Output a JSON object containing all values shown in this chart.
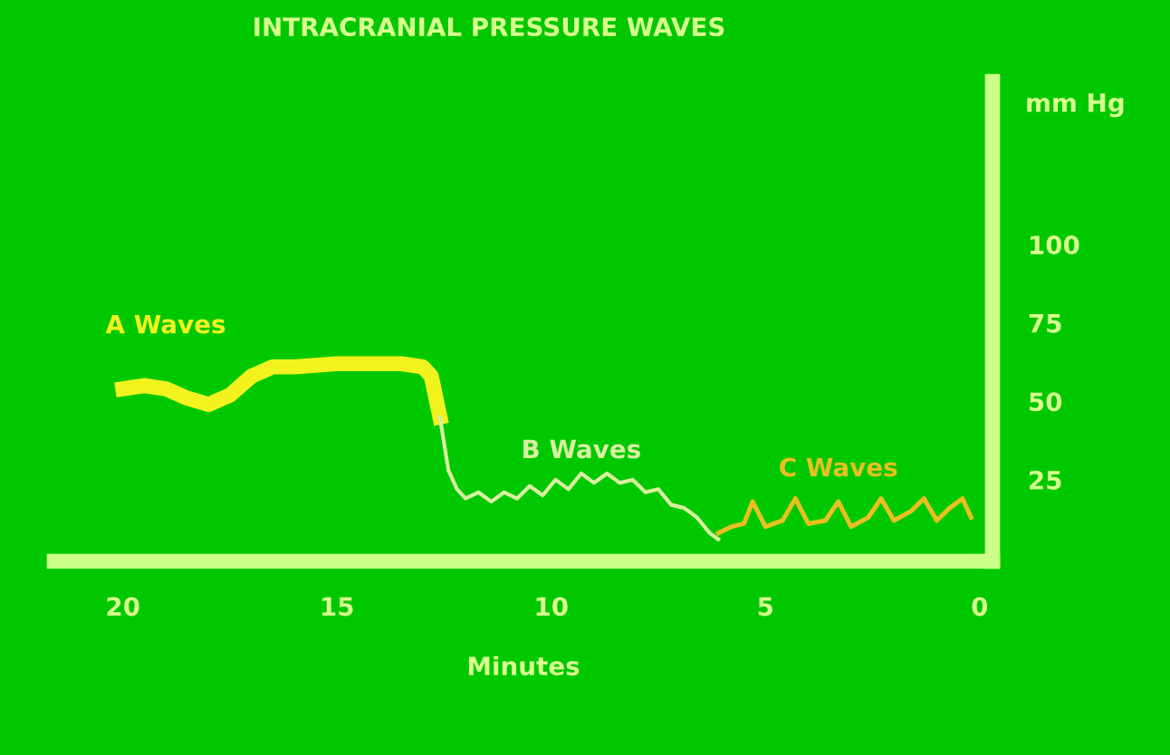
{
  "chart_data": {
    "type": "line",
    "title": "INTRACRANIAL PRESSURE WAVES",
    "xlabel": "Minutes",
    "ylabel": "mm Hg",
    "xlim": [
      21.6,
      -0.3
    ],
    "ylim": [
      -1,
      152
    ],
    "xticks": [
      20,
      15,
      10,
      5,
      0
    ],
    "yticks": [
      25,
      50,
      75,
      100
    ],
    "grid": false,
    "legend": false,
    "marker": "none",
    "line_style": "solid",
    "series": [
      {
        "name": "A Waves",
        "color": "#f2f21e",
        "x": [
          20,
          19.5,
          19,
          18.5,
          18,
          17.5,
          17,
          16.5,
          16,
          15,
          14,
          13.5,
          13,
          12.8,
          12.6
        ],
        "values": [
          54,
          55,
          54,
          51,
          49,
          52,
          58,
          61,
          61,
          62,
          62,
          62,
          61,
          58,
          45
        ]
      },
      {
        "name": "B Waves",
        "color": "#d8f0a0",
        "x": [
          12.6,
          12.4,
          12.2,
          12,
          11.7,
          11.4,
          11.1,
          10.8,
          10.5,
          10.2,
          9.9,
          9.6,
          9.3,
          9,
          8.7,
          8.4,
          8.1,
          7.8,
          7.5,
          7.2,
          6.9,
          6.6,
          6.3,
          6.1
        ],
        "values": [
          45,
          28,
          22,
          19,
          21,
          18,
          21,
          19,
          23,
          20,
          25,
          22,
          27,
          24,
          27,
          24,
          25,
          21,
          22,
          17,
          16,
          13,
          8,
          6
        ]
      },
      {
        "name": "C Waves",
        "color": "#e8c020",
        "x": [
          6.1,
          5.8,
          5.5,
          5.3,
          5.0,
          4.6,
          4.3,
          4.0,
          3.6,
          3.3,
          3.0,
          2.6,
          2.3,
          2.0,
          1.6,
          1.3,
          1.0,
          0.7,
          0.4,
          0.2
        ],
        "values": [
          8,
          10,
          11,
          18,
          10,
          12,
          19,
          11,
          12,
          18,
          10,
          13,
          19,
          12,
          15,
          19,
          12,
          16,
          19,
          13
        ]
      }
    ]
  }
}
